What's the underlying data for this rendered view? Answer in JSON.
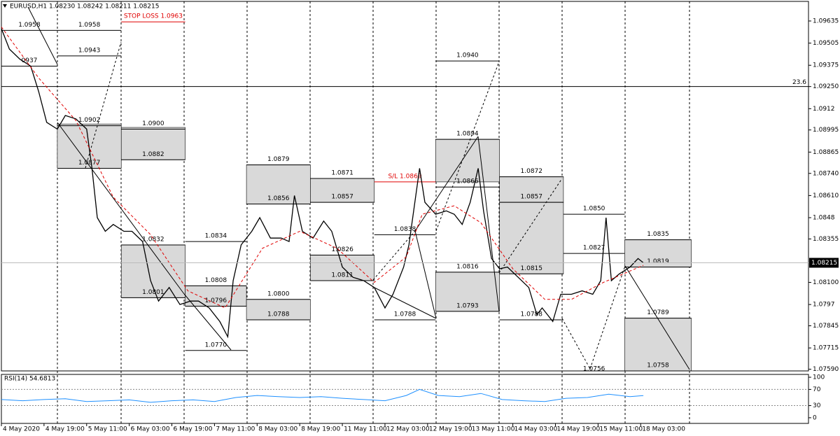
{
  "header": "EURUSD,H1  1.08230 1.08242 1.08211 1.08215",
  "chart_data": [
    {
      "type": "line",
      "series": [
        {
          "color": "#000000",
          "x": [
            0,
            3,
            7,
            11,
            14,
            17,
            21,
            24,
            28,
            32,
            34,
            36,
            39,
            42,
            46,
            49,
            53,
            56,
            59,
            63,
            67,
            71,
            74,
            78,
            82,
            85,
            87,
            90,
            94,
            97,
            101,
            105,
            108,
            110,
            113,
            117,
            121,
            124,
            128,
            132,
            136,
            140,
            144,
            147,
            151,
            153,
            157,
            159,
            163,
            167,
            170,
            173,
            176,
            179,
            181,
            184,
            187,
            190,
            194,
            198,
            201,
            203,
            207,
            210,
            214,
            218,
            222,
            225,
            227,
            229,
            232,
            236,
            239,
            241
          ],
          "values": [
            1.0959,
            1.0947,
            1.0941,
            1.0937,
            1.0922,
            1.0904,
            1.09,
            1.0908,
            1.0906,
            1.09,
            1.0877,
            1.0848,
            1.084,
            1.0844,
            1.084,
            1.084,
            1.0834,
            1.0811,
            1.0799,
            1.0807,
            1.0797,
            1.0799,
            1.0799,
            1.0795,
            1.0787,
            1.0778,
            1.0811,
            1.0832,
            1.084,
            1.0848,
            1.0836,
            1.0836,
            1.0834,
            1.0861,
            1.084,
            1.0836,
            1.0846,
            1.084,
            1.0819,
            1.0813,
            1.0811,
            1.0807,
            1.0795,
            1.0803,
            1.0819,
            1.0832,
            1.0877,
            1.0857,
            1.085,
            1.0852,
            1.085,
            1.0844,
            1.0857,
            1.0877,
            1.0852,
            1.0824,
            1.0818,
            1.0819,
            1.0813,
            1.0807,
            1.0791,
            1.0795,
            1.0787,
            1.0803,
            1.0803,
            1.0805,
            1.0803,
            1.0811,
            1.0848,
            1.0811,
            1.0815,
            1.0819,
            1.0824,
            1.08215
          ]
        },
        {
          "color": "#e00000",
          "dashed": true,
          "x": [
            0,
            14,
            28,
            42,
            56,
            70,
            84,
            98,
            112,
            126,
            140,
            152,
            158,
            170,
            180,
            192,
            204,
            214,
            226,
            241
          ],
          "values": [
            1.096,
            1.093,
            1.0905,
            1.086,
            1.0838,
            1.0805,
            1.0795,
            1.083,
            1.084,
            1.083,
            1.081,
            1.0825,
            1.085,
            1.0855,
            1.0845,
            1.0818,
            1.08,
            1.08,
            1.081,
            1.082
          ]
        }
      ],
      "xlim": [
        0,
        303
      ],
      "xticks": [
        {
          "value": 0,
          "label": "4 May 2020"
        },
        {
          "value": 16,
          "label": "4 May 19:00"
        },
        {
          "value": 32,
          "label": "5 May 11:00"
        },
        {
          "value": 48,
          "label": "6 May 03:00"
        },
        {
          "value": 64,
          "label": "6 May 19:00"
        },
        {
          "value": 80,
          "label": "7 May 11:00"
        },
        {
          "value": 96,
          "label": "8 May 03:00"
        },
        {
          "value": 112,
          "label": "8 May 19:00"
        },
        {
          "value": 128,
          "label": "11 May 11:00"
        },
        {
          "value": 144,
          "label": "12 May 03:00"
        },
        {
          "value": 160,
          "label": "12 May 19:00"
        },
        {
          "value": 176,
          "label": "13 May 11:00"
        },
        {
          "value": 192,
          "label": "14 May 03:00"
        },
        {
          "value": 208,
          "label": "14 May 19:00"
        },
        {
          "value": 224,
          "label": "15 May 11:00"
        },
        {
          "value": 240,
          "label": "18 May 03:00"
        }
      ],
      "ylim": [
        1.0758,
        1.0975
      ],
      "yticks": [
        1.09635,
        1.09505,
        1.09375,
        {
          "value": 1.0925,
          "label": "1.09250"
        },
        1.0912,
        1.08995,
        1.08865,
        {
          "value": 1.0874,
          "label": "1.08740"
        },
        {
          "value": 1.0861,
          "label": "1.08610"
        },
        1.0848,
        1.08355,
        {
          "value": 1.081,
          "label": "1.08100"
        },
        1.0797,
        1.07845,
        1.07715,
        {
          "value": 1.0759,
          "label": "1.07590"
        }
      ],
      "last_price": 1.08215,
      "fib": {
        "value": 1.0925,
        "label": "23.6"
      },
      "zones": [
        {
          "x": [
            21,
            45
          ],
          "y": [
            1.0877,
            1.0903
          ]
        },
        {
          "x": [
            45,
            69
          ],
          "y": [
            1.0882,
            1.0901
          ]
        },
        {
          "x": [
            45,
            69
          ],
          "y": [
            1.0801,
            1.0832
          ]
        },
        {
          "x": [
            69,
            92
          ],
          "y": [
            1.0796,
            1.0808
          ]
        },
        {
          "x": [
            92,
            116
          ],
          "y": [
            1.0856,
            1.0879
          ]
        },
        {
          "x": [
            92,
            116
          ],
          "y": [
            1.0788,
            1.08
          ]
        },
        {
          "x": [
            116,
            140
          ],
          "y": [
            1.0857,
            1.0871
          ]
        },
        {
          "x": [
            116,
            140
          ],
          "y": [
            1.0811,
            1.0826
          ]
        },
        {
          "x": [
            163,
            187
          ],
          "y": [
            1.0869,
            1.0894
          ]
        },
        {
          "x": [
            163,
            187
          ],
          "y": [
            1.0793,
            1.0816
          ]
        },
        {
          "x": [
            187,
            211
          ],
          "y": [
            1.0857,
            1.0872
          ]
        },
        {
          "x": [
            187,
            211
          ],
          "y": [
            1.0815,
            1.0857
          ]
        },
        {
          "x": [
            234,
            259
          ],
          "y": [
            1.0819,
            1.0835
          ]
        },
        {
          "x": [
            234,
            259
          ],
          "y": [
            1.0758,
            1.0789
          ]
        }
      ],
      "levels": [
        {
          "label": "1.0958",
          "value": 1.0958,
          "x": [
            21,
            45
          ]
        },
        {
          "label": "1.0958",
          "value": 1.0958,
          "x": [
            0,
            21
          ]
        },
        {
          "label": "1.0943",
          "value": 1.0943,
          "x": [
            21,
            45
          ]
        },
        {
          "label": "0937",
          "value": 1.0937,
          "x": [
            0,
            21
          ]
        },
        {
          "label": "1.0902",
          "value": 1.0902,
          "x": [
            21,
            45
          ]
        },
        {
          "label": "1.0900",
          "value": 1.09,
          "x": [
            45,
            69
          ]
        },
        {
          "label": "1.0882",
          "value": 1.0882,
          "x": [
            45,
            69
          ]
        },
        {
          "label": "1.0877",
          "value": 1.0877,
          "x": [
            21,
            45
          ]
        },
        {
          "label": "1.0832",
          "value": 1.0832,
          "x": [
            45,
            69
          ]
        },
        {
          "label": "1.0801",
          "value": 1.0801,
          "x": [
            45,
            69
          ]
        },
        {
          "label": "1.0834",
          "value": 1.0834,
          "x": [
            69,
            92
          ]
        },
        {
          "label": "1.0808",
          "value": 1.0808,
          "x": [
            69,
            92
          ]
        },
        {
          "label": "1.0796",
          "value": 1.0796,
          "x": [
            69,
            92
          ]
        },
        {
          "label": "1.0770",
          "value": 1.077,
          "x": [
            69,
            92
          ]
        },
        {
          "label": "1.0879",
          "value": 1.0879,
          "x": [
            92,
            116
          ]
        },
        {
          "label": "1.0856",
          "value": 1.0856,
          "x": [
            92,
            116
          ]
        },
        {
          "label": "1.0800",
          "value": 1.08,
          "x": [
            92,
            116
          ]
        },
        {
          "label": "1.0788",
          "value": 1.0788,
          "x": [
            92,
            116
          ]
        },
        {
          "label": "1.0871",
          "value": 1.0871,
          "x": [
            116,
            140
          ]
        },
        {
          "label": "1.0857",
          "value": 1.0857,
          "x": [
            116,
            140
          ]
        },
        {
          "label": "1.0826",
          "value": 1.0826,
          "x": [
            116,
            140
          ]
        },
        {
          "label": "1.0811",
          "value": 1.0811,
          "x": [
            116,
            140
          ]
        },
        {
          "label": "1.0838",
          "value": 1.0838,
          "x": [
            140,
            163
          ]
        },
        {
          "label": "1.0788",
          "value": 1.0788,
          "x": [
            140,
            163
          ]
        },
        {
          "label": "1.0940",
          "value": 1.094,
          "x": [
            163,
            187
          ]
        },
        {
          "label": "1.0894",
          "value": 1.0894,
          "x": [
            163,
            187
          ]
        },
        {
          "label": "1.0866",
          "value": 1.0866,
          "x": [
            163,
            187
          ]
        },
        {
          "label": "1.0816",
          "value": 1.0816,
          "x": [
            163,
            187
          ]
        },
        {
          "label": "1.0793",
          "value": 1.0793,
          "x": [
            163,
            187
          ]
        },
        {
          "label": "1.0872",
          "value": 1.0872,
          "x": [
            187,
            211
          ]
        },
        {
          "label": "1.0857",
          "value": 1.0857,
          "x": [
            187,
            211
          ]
        },
        {
          "label": "1.0815",
          "value": 1.0815,
          "x": [
            187,
            211
          ]
        },
        {
          "label": "1.0788",
          "value": 1.0788,
          "x": [
            187,
            211
          ]
        },
        {
          "label": "1.0850",
          "value": 1.085,
          "x": [
            211,
            234
          ]
        },
        {
          "label": "1.0827",
          "value": 1.0827,
          "x": [
            211,
            234
          ]
        },
        {
          "label": "1.0756",
          "value": 1.0756,
          "x": [
            211,
            234
          ]
        },
        {
          "label": "1.0835",
          "value": 1.0835,
          "x": [
            234,
            259
          ]
        },
        {
          "label": "1.0819",
          "value": 1.0819,
          "x": [
            234,
            259
          ]
        },
        {
          "label": "1.0789",
          "value": 1.0789,
          "x": [
            234,
            259
          ]
        },
        {
          "label": "1.0758",
          "value": 1.0758,
          "x": [
            234,
            259
          ]
        },
        {
          "label": "STOP LOSS  1.0963",
          "value": 1.0963,
          "x": [
            45,
            69
          ],
          "color": "#e00000"
        },
        {
          "label": "S/L 1.0869",
          "value": 1.0869,
          "x": [
            140,
            163
          ],
          "color": "#e00000"
        }
      ]
    },
    {
      "type": "line",
      "title": "RSI(14) 54.6813",
      "color": "#1e90ff",
      "x": [
        0,
        8,
        16,
        24,
        32,
        40,
        48,
        56,
        64,
        72,
        80,
        88,
        96,
        104,
        112,
        120,
        128,
        136,
        144,
        152,
        157,
        164,
        172,
        180,
        188,
        196,
        204,
        212,
        220,
        228,
        236,
        241
      ],
      "values": [
        45,
        42,
        45,
        47,
        40,
        42,
        44,
        38,
        42,
        44,
        40,
        50,
        55,
        52,
        50,
        52,
        48,
        45,
        42,
        55,
        70,
        55,
        52,
        60,
        45,
        42,
        40,
        48,
        50,
        58,
        52,
        54.6813
      ],
      "xlim": [
        0,
        303
      ],
      "ylim": [
        -14,
        107
      ],
      "yticks": [
        100,
        70,
        30,
        0
      ]
    }
  ]
}
